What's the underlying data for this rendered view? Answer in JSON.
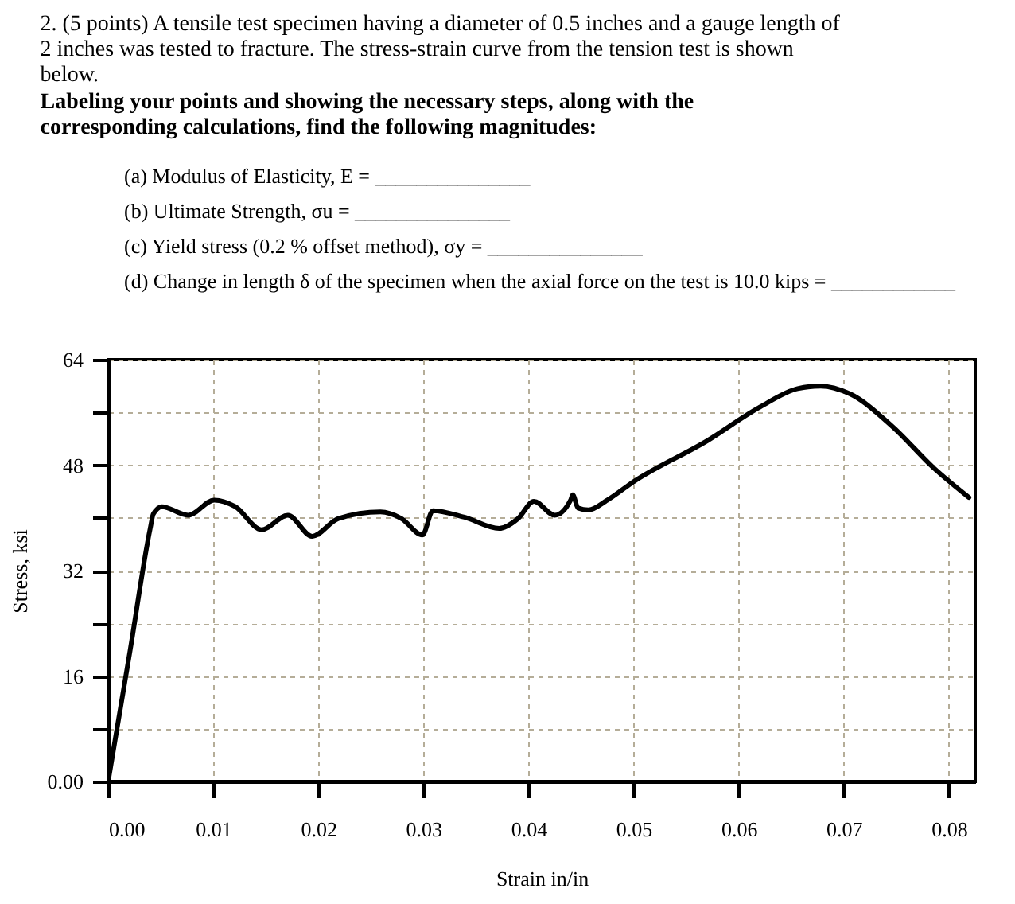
{
  "chart_data": {
    "type": "line",
    "title": "2. (5 points) A tensile test specimen having a diameter of 0.5 inches and a gauge length of 2 inches was tested to fracture.  The stress-strain curve from the tension test is shown below.",
    "subtitle": "Labeling your points and showing the necessary steps, along with the corresponding calculations, find the following magnitudes:",
    "annotations": [
      "(a) Modulus of Elasticity, E = _______________",
      "(b) Ultimate Strength, σu = _______________",
      "(c) Yield stress (0.2 % offset method), σy = _______________",
      "(d) Change in length δ of the specimen when the axial force on the test is 10.0 kips = ____________"
    ],
    "xlabel": "Strain in/in",
    "ylabel": "Stress, ksi",
    "x": [
      0,
      0.0021,
      0.004,
      0.0043,
      0.0051,
      0.0076,
      0.0101,
      0.0121,
      0.0146,
      0.0171,
      0.0194,
      0.0219,
      0.0259,
      0.0279,
      0.0299,
      0.0309,
      0.0339,
      0.0372,
      0.039,
      0.0405,
      0.0425,
      0.044,
      0.0442,
      0.0447,
      0.0457,
      0.0475,
      0.05,
      0.057,
      0.062,
      0.0656,
      0.0678,
      0.0706,
      0.0746,
      0.0786,
      0.0819
    ],
    "series": [
      {
        "color": "#000000",
        "values": [
          0,
          20,
          38.4,
          40.6,
          41.7,
          40.4,
          42.7,
          41.7,
          38.2,
          40.4,
          37.2,
          39.9,
          40.9,
          39.9,
          37.4,
          41.1,
          40.1,
          38.4,
          39.9,
          42.5,
          40.4,
          42.7,
          43.5,
          41.5,
          41.2,
          42.7,
          45.5,
          51.7,
          56.8,
          59.6,
          60.0,
          58.8,
          53.9,
          47.5,
          43.1
        ]
      }
    ],
    "xlim": [
      0,
      0.0825
    ],
    "ylim": [
      0,
      64
    ],
    "xticks": [
      {
        "value": 0,
        "label": "0.00"
      },
      0.01,
      0.02,
      0.03,
      0.04,
      0.05,
      0.06,
      0.07,
      0.08
    ],
    "yticks": [
      {
        "value": 0,
        "label": "0.00"
      },
      {
        "value": 8,
        "label": null
      },
      16,
      {
        "value": 24,
        "label": null
      },
      32,
      {
        "value": 40,
        "label": null
      },
      48,
      {
        "value": 56,
        "label": null
      },
      64
    ],
    "grid": true,
    "line_style": "solid",
    "marker": "none"
  }
}
